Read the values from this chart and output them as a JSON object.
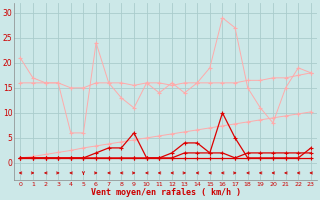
{
  "x": [
    0,
    1,
    2,
    3,
    4,
    5,
    6,
    7,
    8,
    9,
    10,
    11,
    12,
    13,
    14,
    15,
    16,
    17,
    18,
    19,
    20,
    21,
    22,
    23
  ],
  "line1": [
    21,
    17,
    16,
    16,
    6,
    6,
    24,
    16,
    13,
    11,
    16,
    14,
    16,
    14,
    16,
    19,
    29,
    27,
    15,
    11,
    8,
    15,
    19,
    18
  ],
  "line2": [
    1,
    1,
    1,
    1,
    1,
    1,
    2,
    3,
    3,
    6,
    1,
    1,
    2,
    4,
    4,
    2,
    10,
    5,
    1,
    1,
    1,
    1,
    1,
    3
  ],
  "line3": [
    1,
    1,
    1,
    1,
    1,
    1,
    1,
    1,
    1,
    1,
    1,
    1,
    1,
    2,
    2,
    2,
    2,
    1,
    2,
    2,
    2,
    2,
    2,
    2
  ],
  "line4": [
    1,
    1,
    1,
    1,
    1,
    1,
    1,
    1,
    1,
    1,
    1,
    1,
    1,
    1,
    1,
    1,
    1,
    1,
    1,
    1,
    1,
    1,
    1,
    1
  ],
  "line5_slope": [
    1,
    1.3,
    1.7,
    2.1,
    2.5,
    3.0,
    3.4,
    3.8,
    4.2,
    4.6,
    5.0,
    5.4,
    5.8,
    6.2,
    6.6,
    7.0,
    7.4,
    7.8,
    8.2,
    8.6,
    9.0,
    9.4,
    9.8,
    10.2
  ],
  "line6_upper": [
    16,
    16,
    16,
    16,
    15,
    15,
    16,
    16,
    16,
    15.5,
    16,
    16,
    15.5,
    16,
    16,
    16,
    16,
    16,
    16.5,
    16.5,
    17,
    17,
    17.5,
    18
  ],
  "wind_dirs": [
    270,
    90,
    270,
    90,
    270,
    0,
    90,
    270,
    270,
    90,
    270,
    270,
    270,
    90,
    270,
    270,
    270,
    90,
    270,
    270,
    270,
    270,
    270,
    270
  ],
  "background_color": "#cce8e8",
  "grid_color": "#aacccc",
  "line1_color": "#ffaaaa",
  "line2_color": "#dd0000",
  "line3_color": "#dd0000",
  "line4_color": "#dd0000",
  "line5_color": "#ffaaaa",
  "line6_color": "#ffaaaa",
  "arrow_color": "#cc0000",
  "tick_color": "#cc0000",
  "xlabel": "Vent moyen/en rafales ( km/h )",
  "xlabel_color": "#cc0000",
  "ylabel_ticks": [
    0,
    5,
    10,
    15,
    20,
    25,
    30
  ],
  "xlim": [
    -0.5,
    23.5
  ],
  "ylim": [
    -3.5,
    32
  ]
}
